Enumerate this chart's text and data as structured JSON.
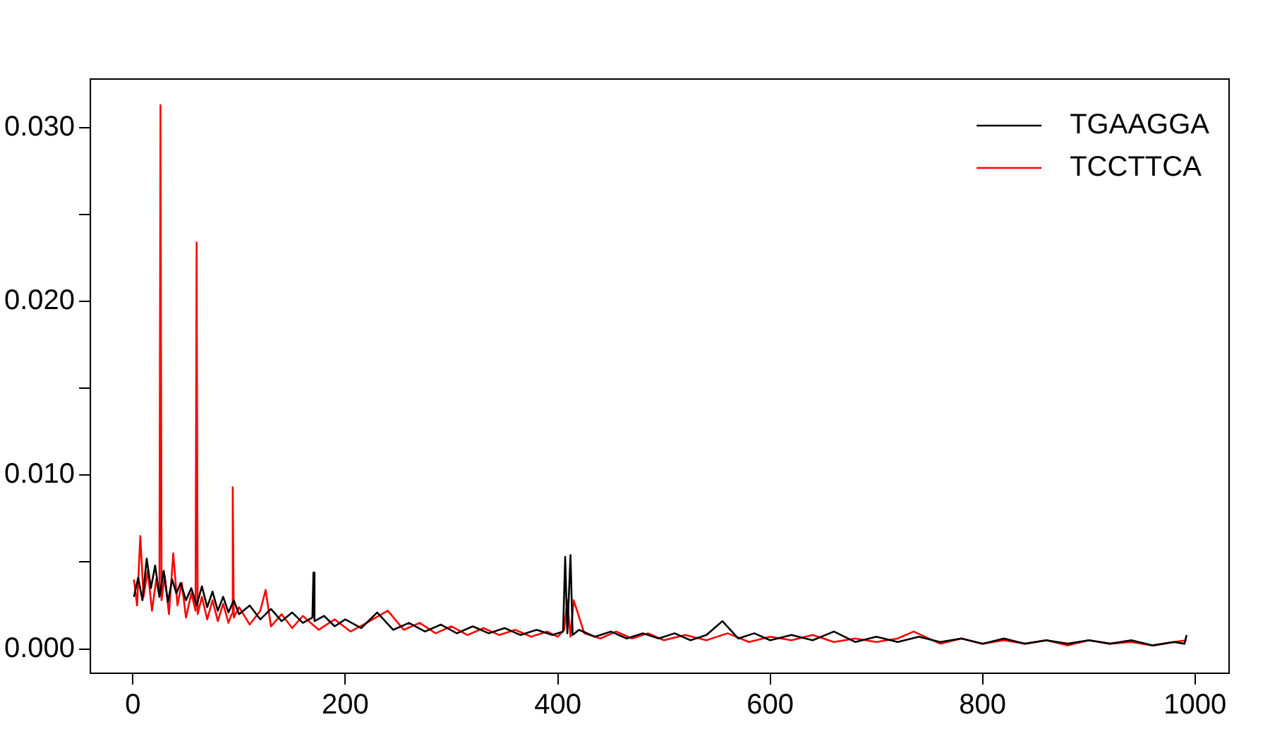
{
  "chart_data": {
    "type": "line",
    "xlim": [
      -40,
      1032
    ],
    "xticks": [
      0,
      200,
      400,
      600,
      800,
      1000
    ],
    "ylim": [
      -0.0014,
      0.0328
    ],
    "yticks": [
      {
        "value": 0,
        "label": "0.000"
      },
      {
        "value": 0.005,
        "label": null
      },
      {
        "value": 0.01,
        "label": "0.010"
      },
      {
        "value": 0.015,
        "label": null
      },
      {
        "value": 0.02,
        "label": "0.020"
      },
      {
        "value": 0.025,
        "label": null
      },
      {
        "value": 0.03,
        "label": "0.030"
      }
    ],
    "grid": false,
    "legend": "top right",
    "marker": "none",
    "line_style": "solid",
    "series": [
      {
        "name": "TGAAGGA",
        "color": "#000000",
        "x": [
          1,
          5,
          9,
          13,
          17,
          21,
          25,
          29,
          33,
          37,
          41,
          45,
          50,
          55,
          60,
          65,
          70,
          75,
          80,
          85,
          90,
          95,
          100,
          110,
          120,
          130,
          140,
          150,
          160,
          169,
          170,
          171,
          180,
          190,
          200,
          215,
          230,
          245,
          260,
          275,
          290,
          305,
          320,
          335,
          350,
          365,
          380,
          395,
          405,
          407,
          409,
          412,
          414,
          420,
          435,
          450,
          465,
          480,
          495,
          510,
          525,
          540,
          555,
          570,
          585,
          600,
          620,
          640,
          660,
          680,
          700,
          720,
          740,
          760,
          780,
          800,
          820,
          840,
          860,
          880,
          900,
          920,
          940,
          960,
          980,
          990,
          992
        ],
        "values": [
          0.003,
          0.0041,
          0.0028,
          0.0052,
          0.0035,
          0.0048,
          0.003,
          0.0045,
          0.0027,
          0.004,
          0.0032,
          0.0038,
          0.0028,
          0.0035,
          0.0025,
          0.0036,
          0.0024,
          0.0033,
          0.0022,
          0.003,
          0.0021,
          0.0028,
          0.002,
          0.0025,
          0.0017,
          0.0023,
          0.0016,
          0.0021,
          0.0015,
          0.0018,
          0.0044,
          0.0016,
          0.0019,
          0.0013,
          0.0017,
          0.0012,
          0.0021,
          0.0011,
          0.0015,
          0.001,
          0.0014,
          0.0009,
          0.0013,
          0.0009,
          0.0012,
          0.0008,
          0.0011,
          0.0008,
          0.001,
          0.0053,
          0.0009,
          0.0054,
          0.0008,
          0.0011,
          0.0007,
          0.001,
          0.0006,
          0.0009,
          0.0006,
          0.0009,
          0.0005,
          0.0008,
          0.0016,
          0.0006,
          0.0009,
          0.0005,
          0.0008,
          0.0005,
          0.001,
          0.0004,
          0.0007,
          0.0004,
          0.0007,
          0.0004,
          0.0006,
          0.0003,
          0.0006,
          0.0003,
          0.0005,
          0.0003,
          0.0005,
          0.0003,
          0.0005,
          0.0002,
          0.0004,
          0.0003,
          0.0008
        ]
      },
      {
        "name": "TCCTTCA",
        "color": "#ff0000",
        "x": [
          1,
          4,
          7,
          10,
          14,
          18,
          22,
          25,
          26,
          27,
          30,
          34,
          38,
          42,
          46,
          50,
          55,
          59,
          60,
          61,
          65,
          70,
          75,
          80,
          85,
          90,
          93,
          94,
          95,
          100,
          110,
          120,
          125,
          130,
          140,
          150,
          160,
          175,
          190,
          205,
          220,
          240,
          255,
          270,
          285,
          300,
          315,
          330,
          345,
          360,
          375,
          390,
          400,
          406,
          409,
          412,
          415,
          425,
          440,
          455,
          470,
          485,
          500,
          520,
          540,
          560,
          580,
          600,
          620,
          640,
          660,
          680,
          700,
          720,
          735,
          760,
          780,
          800,
          820,
          840,
          860,
          880,
          900,
          920,
          940,
          960,
          980,
          992
        ],
        "values": [
          0.004,
          0.0025,
          0.0065,
          0.003,
          0.0045,
          0.0022,
          0.004,
          0.003,
          0.0313,
          0.0028,
          0.0042,
          0.002,
          0.0055,
          0.0025,
          0.0038,
          0.0018,
          0.0032,
          0.0022,
          0.0234,
          0.002,
          0.003,
          0.0017,
          0.0028,
          0.0016,
          0.0026,
          0.0015,
          0.002,
          0.0093,
          0.0018,
          0.0024,
          0.0014,
          0.0022,
          0.0034,
          0.0013,
          0.002,
          0.0012,
          0.0019,
          0.0011,
          0.0017,
          0.001,
          0.0015,
          0.0022,
          0.0011,
          0.0015,
          0.0009,
          0.0013,
          0.0008,
          0.0012,
          0.0008,
          0.0011,
          0.0007,
          0.001,
          0.0007,
          0.0011,
          0.0028,
          0.0007,
          0.0028,
          0.0009,
          0.0006,
          0.001,
          0.0006,
          0.0009,
          0.0005,
          0.0008,
          0.0005,
          0.0009,
          0.0004,
          0.0007,
          0.0005,
          0.0008,
          0.0004,
          0.0006,
          0.0004,
          0.0006,
          0.001,
          0.0003,
          0.0006,
          0.0003,
          0.0005,
          0.0003,
          0.0005,
          0.0002,
          0.0005,
          0.0003,
          0.0004,
          0.0002,
          0.0004,
          0.0005
        ]
      }
    ]
  }
}
